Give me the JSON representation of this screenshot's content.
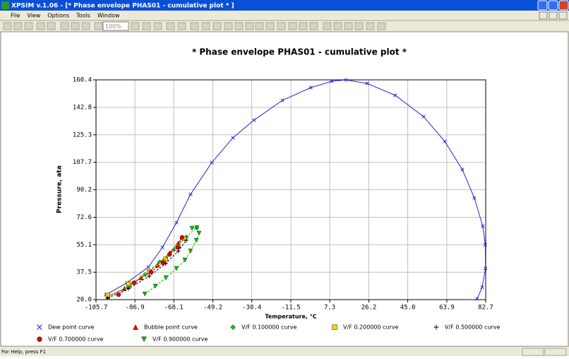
{
  "window": {
    "title": "XPSIM v.1.06 - [* Phase envelope PHAS01    - cumulative plot * ]",
    "menu": [
      "File",
      "View",
      "Options",
      "Tools",
      "Window"
    ],
    "zoom": "100%",
    "status": "For Help, press F1"
  },
  "chart_data": {
    "type": "line",
    "title": "* Phase envelope PHAS01   - cumulative plot *",
    "x_label": "Temperature, °C",
    "y_label": "Pressure,   ata",
    "xlim": [
      -105.7,
      82.7
    ],
    "ylim": [
      20,
      160.4
    ],
    "xticks": [
      -105.7,
      -86.9,
      -68.1,
      -49.2,
      -30.4,
      -11.5,
      7.3,
      26.2,
      {
        "value": 45,
        "label": "45.0"
      },
      63.9,
      82.7
    ],
    "yticks": [
      {
        "value": 20,
        "label": "20.0"
      },
      37.5,
      55.1,
      72.6,
      90.2,
      107.7,
      125.3,
      142.8,
      160.4
    ],
    "grid": true,
    "series": [
      {
        "name": "Dew point curve",
        "color": "#2323d0",
        "marker": "x",
        "x": [
          -100.9,
          -90.7,
          -80.4,
          -73.6,
          -66.8,
          -60.0,
          -49.7,
          -39.5,
          -29.3,
          -15.6,
          -1.9,
          8.3,
          15.1,
          25.4,
          39.0,
          52.7,
          62.9,
          71.4,
          77.2,
          81.3,
          82.5,
          82.6,
          81.0,
          78.5
        ],
        "values": [
          23.2,
          30.8,
          40.8,
          53.4,
          69.2,
          87.3,
          107.6,
          123.4,
          134.7,
          147.3,
          155.4,
          159.5,
          160.4,
          158.1,
          150.5,
          136.9,
          121.1,
          103.1,
          85.0,
          66.9,
          55.0,
          40.0,
          28.0,
          20.5
        ]
      },
      {
        "name": "Bubble point curve",
        "color": "#e00000",
        "marker": "triangle",
        "x": [
          -100,
          -92,
          -84,
          -76,
          -70,
          -66,
          -64
        ],
        "values": [
          22,
          27,
          34,
          42,
          50,
          56,
          60
        ]
      },
      {
        "name": "V/F 0.100000 curve",
        "color": "#00c000",
        "marker": "diamond",
        "x": [
          -100,
          -90,
          -82,
          -75,
          -68,
          -62,
          -57
        ],
        "values": [
          22,
          28,
          36,
          44,
          52,
          60,
          66
        ]
      },
      {
        "name": "V/F 0.200000 curve",
        "color": "#e8d800",
        "marker": "square",
        "x": [
          -100,
          -90,
          -80,
          -72,
          -66,
          -63
        ],
        "values": [
          23,
          30,
          38,
          46,
          54,
          59
        ]
      },
      {
        "name": "V/F 0.500000 curve",
        "color": "#000000",
        "marker": "plus",
        "x": [
          -100,
          -90,
          -80,
          -72,
          -66,
          -62
        ],
        "values": [
          21,
          27,
          35,
          43,
          51,
          58
        ]
      },
      {
        "name": "V/F 0.700000 curve",
        "color": "#e00000",
        "marker": "circle",
        "x": [
          -94.8,
          -87.3,
          -79.1,
          -73.3,
          -70.2,
          -66.1,
          -64.1
        ],
        "values": [
          23.2,
          30.8,
          37.6,
          43.5,
          48.9,
          53.4,
          59.7
        ]
      },
      {
        "name": "V/F 0.900000 curve",
        "color": "#00c000",
        "marker": "triangle-down",
        "x": [
          -82.1,
          -77.0,
          -71.9,
          -66.8,
          -62.7,
          -60.0,
          -57.2,
          -55.9,
          -56.9,
          -59.3
        ],
        "values": [
          23.6,
          28.6,
          34.0,
          39.9,
          45.3,
          51.1,
          57.9,
          62.4,
          66.0,
          65.6
        ]
      }
    ]
  }
}
